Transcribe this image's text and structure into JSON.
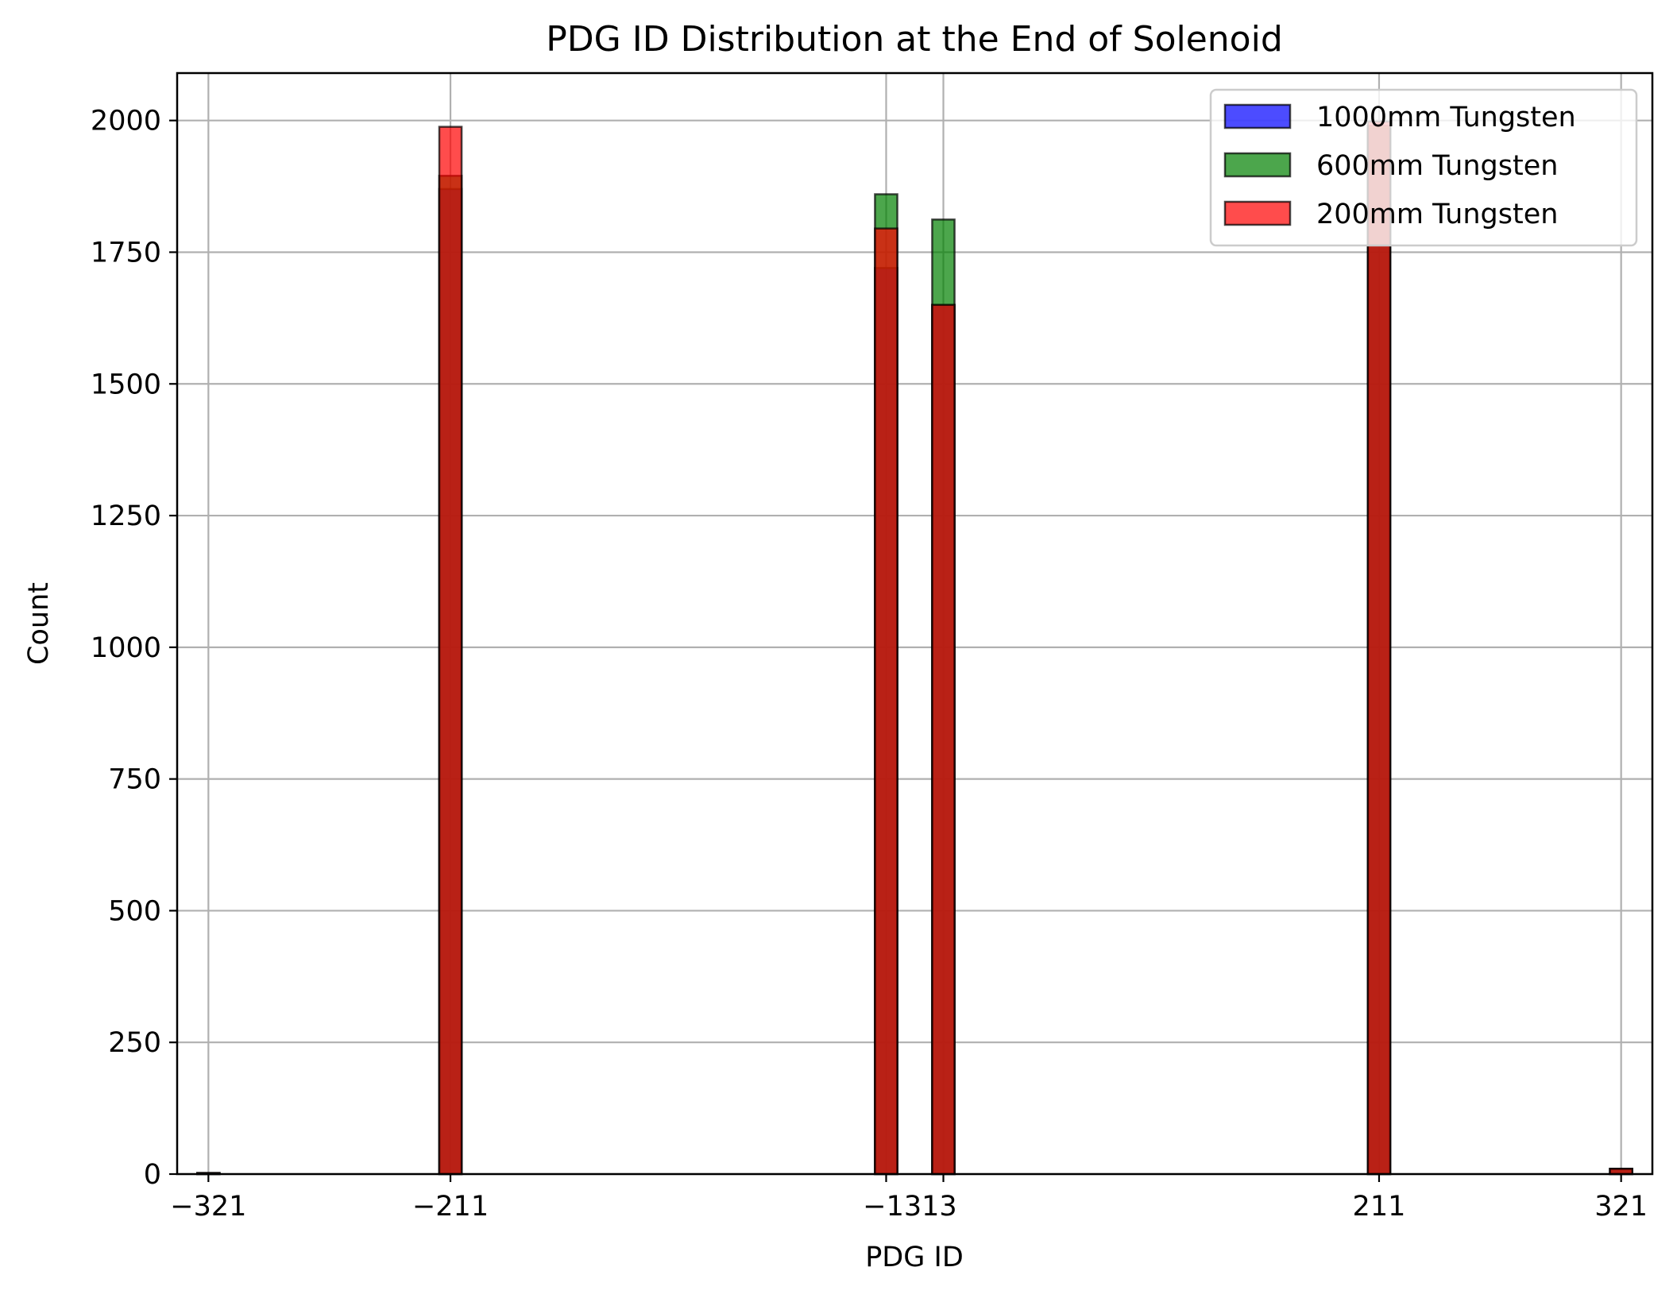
{
  "chart_data": {
    "type": "bar",
    "title": "PDG ID Distribution at the End of Solenoid",
    "xlabel": "PDG ID",
    "ylabel": "Count",
    "xlim": [
      -335.2,
      335.2
    ],
    "ylim": [
      0,
      2090
    ],
    "grid": true,
    "legend_position": "top-right",
    "xticks": [
      {
        "value": -321,
        "label": "−321"
      },
      {
        "value": -211,
        "label": "−211"
      },
      {
        "value": -13,
        "label": "−13"
      },
      {
        "value": 13,
        "label": "13"
      },
      {
        "value": 211,
        "label": "211"
      },
      {
        "value": 321,
        "label": "321"
      }
    ],
    "x_tick_text": "−1313",
    "yticks": [
      {
        "value": 0,
        "label": "0"
      },
      {
        "value": 250,
        "label": "250"
      },
      {
        "value": 500,
        "label": "500"
      },
      {
        "value": 750,
        "label": "750"
      },
      {
        "value": 1000,
        "label": "1000"
      },
      {
        "value": 1250,
        "label": "1250"
      },
      {
        "value": 1500,
        "label": "1500"
      },
      {
        "value": 1750,
        "label": "1750"
      },
      {
        "value": 2000,
        "label": "2000"
      }
    ],
    "bin_width": 10.16,
    "bins": [
      -321,
      -211,
      -13,
      13,
      211,
      321
    ],
    "series": [
      {
        "name": "1000mm Tungsten",
        "color": "#0000ff",
        "values": [
          2,
          1870,
          1720,
          1650,
          1985,
          10
        ]
      },
      {
        "name": "600mm Tungsten",
        "color": "#008000",
        "values": [
          2,
          1895,
          1860,
          1812,
          1990,
          10
        ]
      },
      {
        "name": "200mm Tungsten",
        "color": "#ff0000",
        "values": [
          2,
          1988,
          1795,
          1650,
          1998,
          10
        ]
      }
    ]
  }
}
